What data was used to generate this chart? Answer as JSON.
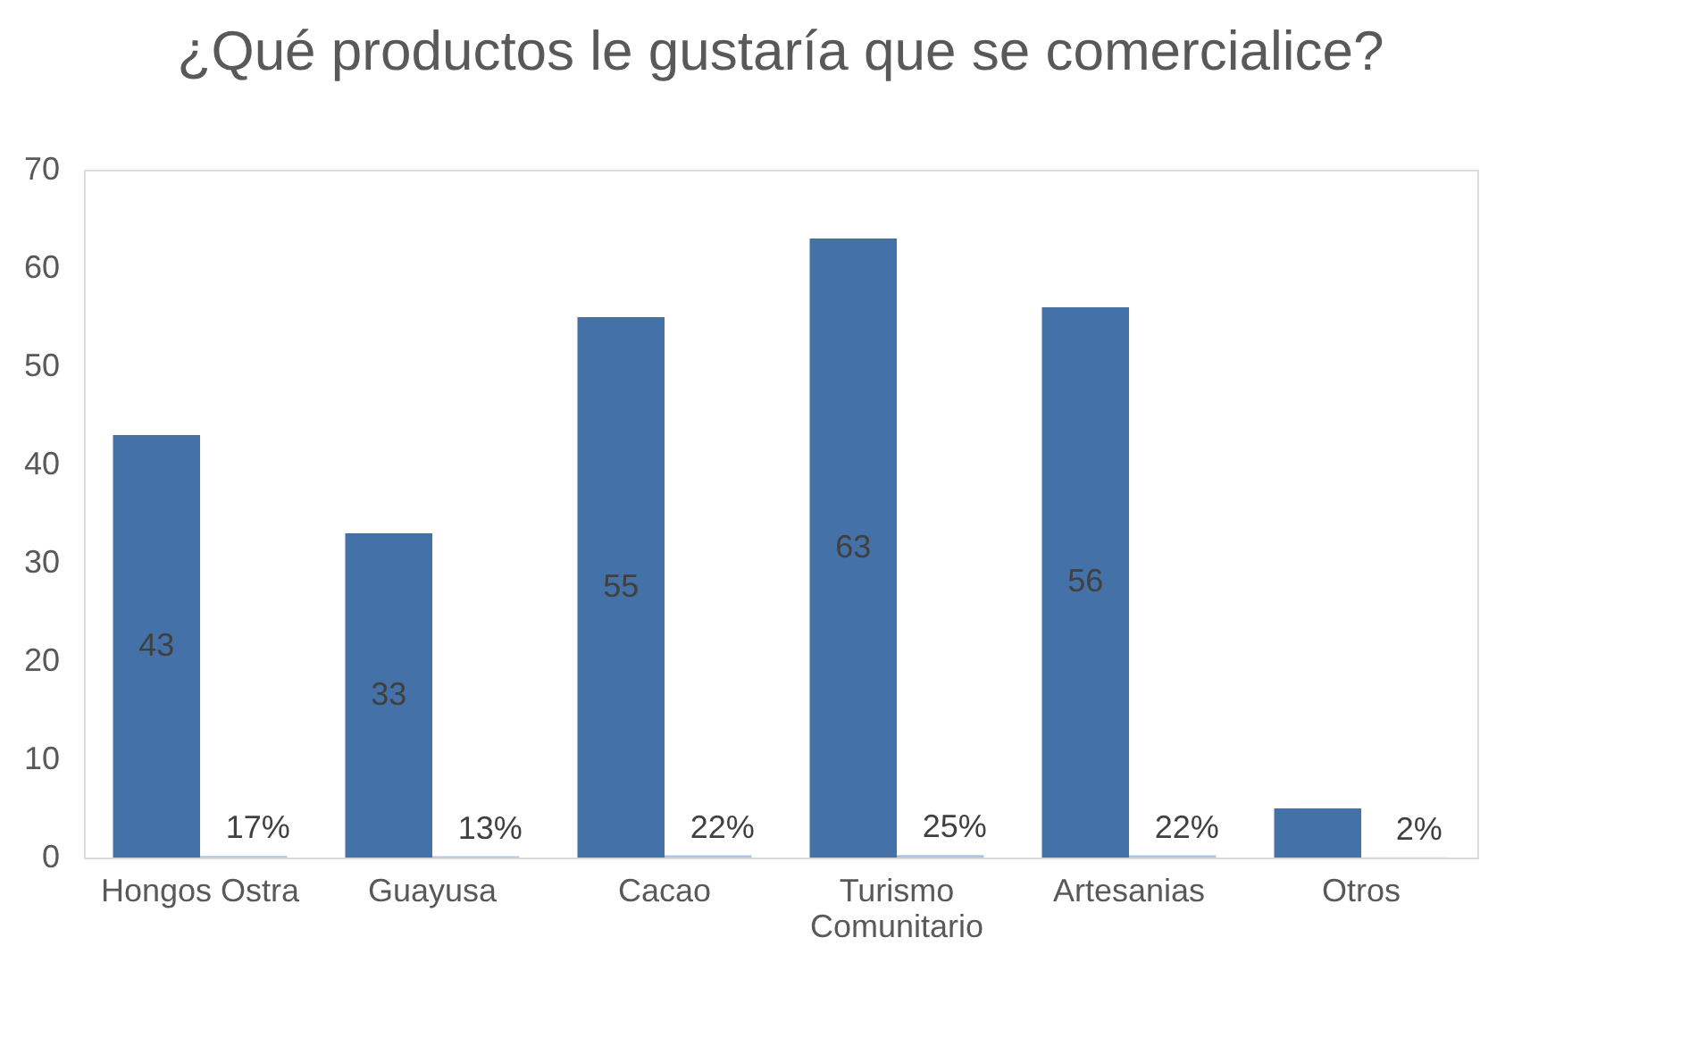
{
  "chart_data": {
    "type": "bar",
    "title": "¿Qué productos le gustaría que se comercialice?",
    "categories": [
      "Hongos Ostra",
      "Guayusa",
      "Cacao",
      "Turismo Comunitario",
      "Artesanias",
      "Otros"
    ],
    "series": [
      {
        "color": "#4472a8",
        "values": [
          43,
          33,
          55,
          63,
          56,
          5
        ],
        "value_labels": [
          "43",
          "33",
          "55",
          "63",
          "56",
          null
        ]
      },
      {
        "color": "#a9c4e6",
        "values": [
          0.17,
          0.13,
          0.22,
          0.25,
          0.22,
          0.02
        ],
        "value_labels": [
          "17%",
          "13%",
          "22%",
          "25%",
          "22%",
          "2%"
        ]
      }
    ],
    "ylim": [
      0,
      70
    ],
    "yticks": [
      0,
      10,
      20,
      30,
      40,
      50,
      60,
      70
    ],
    "grid": false,
    "legend": false
  }
}
